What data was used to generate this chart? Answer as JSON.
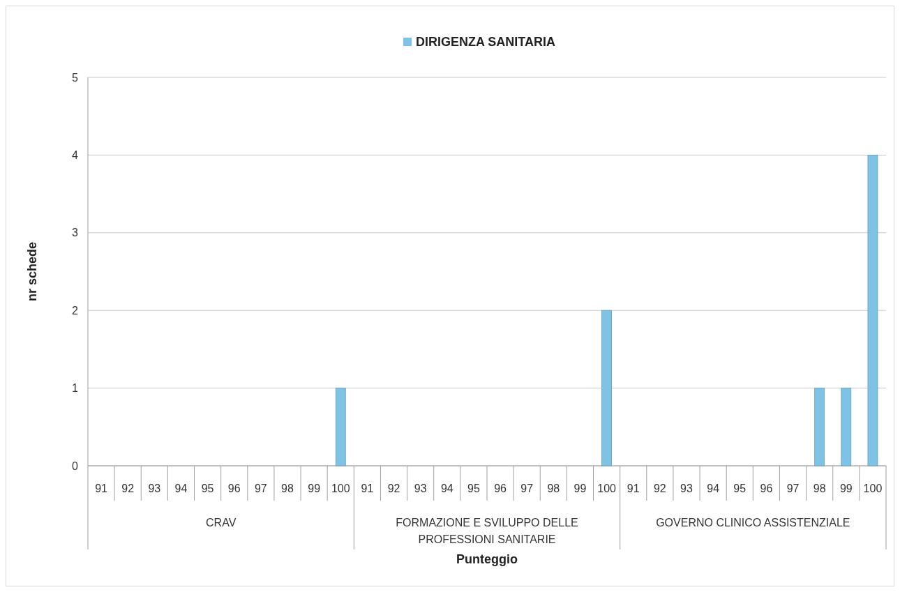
{
  "chart_data": {
    "type": "bar",
    "xlabel": "Punteggio",
    "ylabel": "nr schede",
    "categories": [
      "91",
      "92",
      "93",
      "94",
      "95",
      "96",
      "97",
      "98",
      "99",
      "100",
      "91",
      "92",
      "93",
      "94",
      "95",
      "96",
      "97",
      "98",
      "99",
      "100",
      "91",
      "92",
      "93",
      "94",
      "95",
      "96",
      "97",
      "98",
      "99",
      "100"
    ],
    "series": [
      {
        "name": "DIRIGENZA SANITARIA",
        "color": "#7ec3e6",
        "values": [
          0,
          0,
          0,
          0,
          0,
          0,
          0,
          0,
          0,
          1,
          0,
          0,
          0,
          0,
          0,
          0,
          0,
          0,
          0,
          2,
          0,
          0,
          0,
          0,
          0,
          0,
          0,
          1,
          1,
          4
        ]
      }
    ],
    "annotations": [
      "CRAV",
      "FORMAZIONE E SVILUPPO DELLE PROFESSIONI SANITARIE",
      "GOVERNO CLINICO ASSISTENZIALE"
    ],
    "ylim": [
      0,
      5
    ],
    "yticks": [
      0,
      1,
      2,
      3,
      4,
      5
    ],
    "grid": "y",
    "legend": "top"
  }
}
